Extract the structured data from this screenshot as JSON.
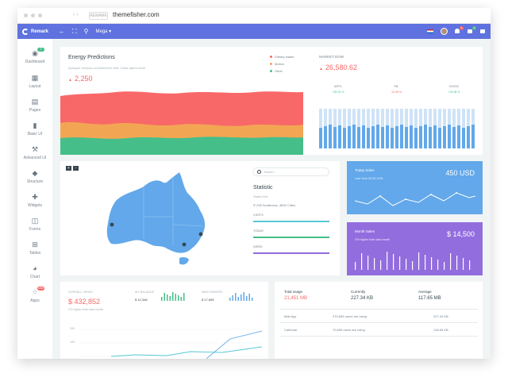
{
  "browser": {
    "pill": "REMARK",
    "url": "themefisher.com"
  },
  "navbar": {
    "brand": "Remark",
    "mega": "Mega",
    "notif_badge": "5",
    "msg_badge": "3"
  },
  "sidebar": {
    "items": [
      {
        "label": "Dashboard",
        "icon": "dashboard-icon",
        "badge": "3"
      },
      {
        "label": "Layout",
        "icon": "layout-icon"
      },
      {
        "label": "Pages",
        "icon": "pages-icon"
      },
      {
        "label": "Basic UI",
        "icon": "bookmark-icon"
      },
      {
        "label": "Advanced UI",
        "icon": "hammer-icon"
      },
      {
        "label": "Structure",
        "icon": "structure-icon"
      },
      {
        "label": "Widgets",
        "icon": "puzzle-icon"
      },
      {
        "label": "Forms",
        "icon": "book-icon"
      },
      {
        "label": "Tables",
        "icon": "grid-icon"
      },
      {
        "label": "Chart",
        "icon": "pie-icon"
      },
      {
        "label": "Apps",
        "icon": "apps-icon",
        "badge": "new"
      }
    ]
  },
  "energy": {
    "title": "Energy Predictions",
    "subtitle": "Quisque volutpat condimentum velit. Class aptent taciti",
    "value": "2,250",
    "legend": [
      {
        "label": "Dietary intake",
        "color": "#f96868"
      },
      {
        "label": "Motion",
        "color": "#f2a654"
      },
      {
        "label": "Other",
        "color": "#46be8a"
      }
    ]
  },
  "market": {
    "title": "MARKET DOW",
    "value": "26,580.62",
    "columns": [
      {
        "name": "APPL",
        "change": "+82.24 %",
        "color": "#46be8a"
      },
      {
        "name": "FB",
        "change": "-12.06 %",
        "color": "#f96868"
      },
      {
        "name": "GOOG",
        "change": "+24.98 %",
        "color": "#46be8a"
      }
    ]
  },
  "map": {
    "zoom_in": "+",
    "zoom_out": "-",
    "search_placeholder": "Search...",
    "statistic_title": "Statistic",
    "statistic_sub": "Status line",
    "location": "238 Southness, 4830 Cities",
    "bars": [
      {
        "label": "VISITS",
        "percent": 100,
        "color": "#57c7d4"
      },
      {
        "label": "TODAY",
        "percent": 100,
        "color": "#46be8a"
      },
      {
        "label": "WEEK",
        "percent": 100,
        "color": "#926dde"
      }
    ]
  },
  "today_sales": {
    "title": "Today Sales",
    "value": "450 USD",
    "subtitle": "Last Year 32.56 USD"
  },
  "month_sales": {
    "title": "Month Sales",
    "value": "$ 14,500",
    "subtitle": "2% higher than last month"
  },
  "overall": {
    "label": "OVERALL VIEWS",
    "value": "$ 432,852",
    "sub": "2% higher than last month",
    "balance_label": "MY BALANCE",
    "balance_value": "$ 12,348",
    "orders_label": "NEW ORDERS",
    "orders_value": "$ 17,655",
    "axis_top": "200",
    "axis_bottom": "100"
  },
  "usage": {
    "headers": [
      {
        "label": "Total usage",
        "value": "21,451 MB",
        "color": "#f96868"
      },
      {
        "label": "Currently",
        "value": "227.34 KB",
        "color": "#37474f"
      },
      {
        "label": "Average",
        "value": "117.65 MB",
        "color": "#37474f"
      }
    ],
    "rows": [
      {
        "name": "Mail App",
        "users": "370,695 users are using",
        "value": "227.34 KB"
      },
      {
        "name": "Calendar",
        "users": "70,695 users are using",
        "value": "128.65 KB"
      }
    ]
  }
}
